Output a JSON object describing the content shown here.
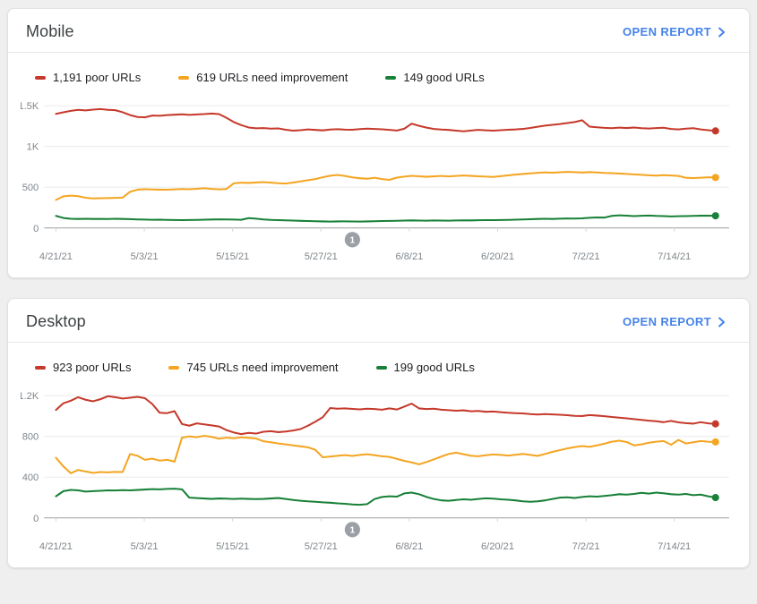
{
  "colors": {
    "poor": "#c5392b",
    "needs_improvement": "#f4a521",
    "good": "#188038",
    "link_blue": "#4683ea",
    "axis_label": "#80868b",
    "grid": "#ebebeb",
    "axis_line": "#9aa0a6",
    "annotation_gray": "#9aa0a6"
  },
  "cards": [
    {
      "title": "Mobile",
      "open_report_label": "OPEN REPORT",
      "legend": [
        {
          "label": "1,191 poor URLs",
          "color": "poor"
        },
        {
          "label": "619 URLs need improvement",
          "color": "needs_improvement"
        },
        {
          "label": "149 good URLs",
          "color": "good"
        }
      ]
    },
    {
      "title": "Desktop",
      "open_report_label": "OPEN REPORT",
      "legend": [
        {
          "label": "923 poor URLs",
          "color": "poor"
        },
        {
          "label": "745 URLs need improvement",
          "color": "needs_improvement"
        },
        {
          "label": "199 good URLs",
          "color": "good"
        }
      ]
    }
  ],
  "chart_data": [
    {
      "type": "line",
      "title": "Mobile",
      "x_labels": [
        "4/21/21",
        "5/3/21",
        "5/15/21",
        "5/27/21",
        "6/8/21",
        "6/20/21",
        "7/2/21",
        "7/14/21"
      ],
      "y_ticks": [
        "1.5K",
        "1K",
        "500",
        "0"
      ],
      "y_max": 1500,
      "grid": true,
      "annotation": {
        "label": "1",
        "day": 40
      },
      "series": [
        {
          "name": "poor URLs",
          "color": "poor",
          "end_value": 1191,
          "values": [
            1400,
            1420,
            1438,
            1450,
            1443,
            1452,
            1460,
            1450,
            1445,
            1420,
            1385,
            1362,
            1358,
            1380,
            1377,
            1385,
            1390,
            1394,
            1388,
            1393,
            1398,
            1404,
            1398,
            1352,
            1300,
            1262,
            1233,
            1223,
            1226,
            1219,
            1222,
            1206,
            1194,
            1200,
            1210,
            1203,
            1198,
            1208,
            1212,
            1207,
            1205,
            1213,
            1219,
            1214,
            1211,
            1204,
            1196,
            1218,
            1280,
            1253,
            1231,
            1214,
            1208,
            1203,
            1194,
            1187,
            1196,
            1204,
            1199,
            1194,
            1200,
            1206,
            1209,
            1215,
            1228,
            1242,
            1255,
            1266,
            1276,
            1288,
            1300,
            1322,
            1243,
            1236,
            1229,
            1225,
            1231,
            1227,
            1232,
            1225,
            1220,
            1226,
            1230,
            1214,
            1209,
            1219,
            1224,
            1210,
            1200,
            1191
          ]
        },
        {
          "name": "URLs need improvement",
          "color": "needs_improvement",
          "end_value": 619,
          "values": [
            345,
            388,
            397,
            390,
            370,
            362,
            365,
            367,
            369,
            372,
            443,
            470,
            476,
            472,
            470,
            469,
            473,
            478,
            474,
            480,
            487,
            479,
            473,
            478,
            548,
            556,
            552,
            558,
            562,
            556,
            549,
            544,
            558,
            571,
            585,
            600,
            622,
            641,
            650,
            638,
            620,
            610,
            604,
            616,
            600,
            590,
            618,
            630,
            640,
            634,
            628,
            633,
            638,
            632,
            638,
            643,
            639,
            634,
            630,
            626,
            636,
            645,
            654,
            662,
            670,
            677,
            682,
            678,
            683,
            688,
            684,
            680,
            685,
            681,
            676,
            672,
            668,
            663,
            658,
            652,
            647,
            642,
            648,
            643,
            638,
            616,
            612,
            617,
            621,
            619
          ]
        },
        {
          "name": "good URLs",
          "color": "good",
          "end_value": 149,
          "values": [
            148,
            122,
            112,
            110,
            112,
            110,
            111,
            109,
            112,
            110,
            108,
            105,
            102,
            100,
            101,
            99,
            97,
            95,
            97,
            99,
            101,
            103,
            106,
            104,
            102,
            100,
            120,
            113,
            104,
            99,
            96,
            93,
            90,
            87,
            84,
            82,
            80,
            78,
            80,
            81,
            79,
            78,
            80,
            82,
            84,
            86,
            88,
            90,
            92,
            90,
            89,
            91,
            90,
            89,
            91,
            93,
            92,
            94,
            96,
            95,
            97,
            99,
            101,
            104,
            107,
            110,
            112,
            110,
            113,
            116,
            114,
            118,
            124,
            129,
            127,
            148,
            154,
            151,
            146,
            149,
            152,
            148,
            145,
            141,
            143,
            146,
            148,
            150,
            151,
            149
          ]
        }
      ]
    },
    {
      "type": "line",
      "title": "Desktop",
      "x_labels": [
        "4/21/21",
        "5/3/21",
        "5/15/21",
        "5/27/21",
        "6/8/21",
        "6/20/21",
        "7/2/21",
        "7/14/21"
      ],
      "y_ticks": [
        "1.2K",
        "800",
        "400",
        "0"
      ],
      "y_max": 1200,
      "grid": true,
      "annotation": {
        "label": "1",
        "day": 40
      },
      "series": [
        {
          "name": "poor URLs",
          "color": "poor",
          "end_value": 923,
          "values": [
            1060,
            1125,
            1150,
            1185,
            1160,
            1145,
            1165,
            1195,
            1185,
            1172,
            1180,
            1188,
            1175,
            1118,
            1032,
            1028,
            1048,
            922,
            905,
            928,
            918,
            908,
            898,
            862,
            838,
            822,
            835,
            828,
            845,
            852,
            842,
            848,
            858,
            872,
            905,
            945,
            988,
            1078,
            1072,
            1076,
            1070,
            1066,
            1072,
            1068,
            1062,
            1076,
            1064,
            1092,
            1122,
            1075,
            1068,
            1072,
            1062,
            1058,
            1052,
            1056,
            1046,
            1050,
            1042,
            1044,
            1038,
            1032,
            1028,
            1026,
            1020,
            1015,
            1020,
            1016,
            1012,
            1008,
            1002,
            1000,
            1010,
            1004,
            998,
            990,
            984,
            978,
            970,
            962,
            955,
            948,
            940,
            952,
            938,
            930,
            925,
            940,
            928,
            923
          ]
        },
        {
          "name": "URLs need improvement",
          "color": "needs_improvement",
          "end_value": 745,
          "values": [
            590,
            505,
            438,
            470,
            455,
            442,
            450,
            447,
            452,
            450,
            628,
            610,
            570,
            582,
            562,
            570,
            552,
            788,
            800,
            792,
            806,
            795,
            778,
            788,
            782,
            790,
            786,
            780,
            752,
            742,
            730,
            722,
            712,
            702,
            693,
            668,
            595,
            602,
            610,
            616,
            608,
            618,
            625,
            615,
            605,
            598,
            580,
            560,
            545,
            525,
            548,
            575,
            602,
            628,
            640,
            625,
            610,
            605,
            615,
            622,
            618,
            612,
            620,
            628,
            618,
            608,
            628,
            648,
            665,
            682,
            695,
            705,
            698,
            712,
            728,
            748,
            758,
            745,
            712,
            722,
            738,
            748,
            755,
            718,
            765,
            730,
            742,
            755,
            748,
            745
          ]
        },
        {
          "name": "good URLs",
          "color": "good",
          "end_value": 199,
          "values": [
            212,
            262,
            275,
            270,
            258,
            262,
            266,
            270,
            268,
            272,
            270,
            274,
            278,
            282,
            280,
            284,
            286,
            280,
            198,
            194,
            190,
            186,
            190,
            188,
            185,
            188,
            186,
            184,
            186,
            190,
            195,
            185,
            175,
            168,
            162,
            158,
            152,
            148,
            142,
            138,
            132,
            128,
            135,
            185,
            205,
            212,
            208,
            240,
            248,
            232,
            205,
            185,
            172,
            168,
            175,
            182,
            178,
            185,
            192,
            188,
            182,
            178,
            172,
            162,
            158,
            162,
            172,
            185,
            198,
            202,
            195,
            205,
            212,
            208,
            215,
            222,
            232,
            228,
            235,
            245,
            238,
            248,
            242,
            232,
            228,
            235,
            222,
            228,
            212,
            199
          ]
        }
      ]
    }
  ]
}
